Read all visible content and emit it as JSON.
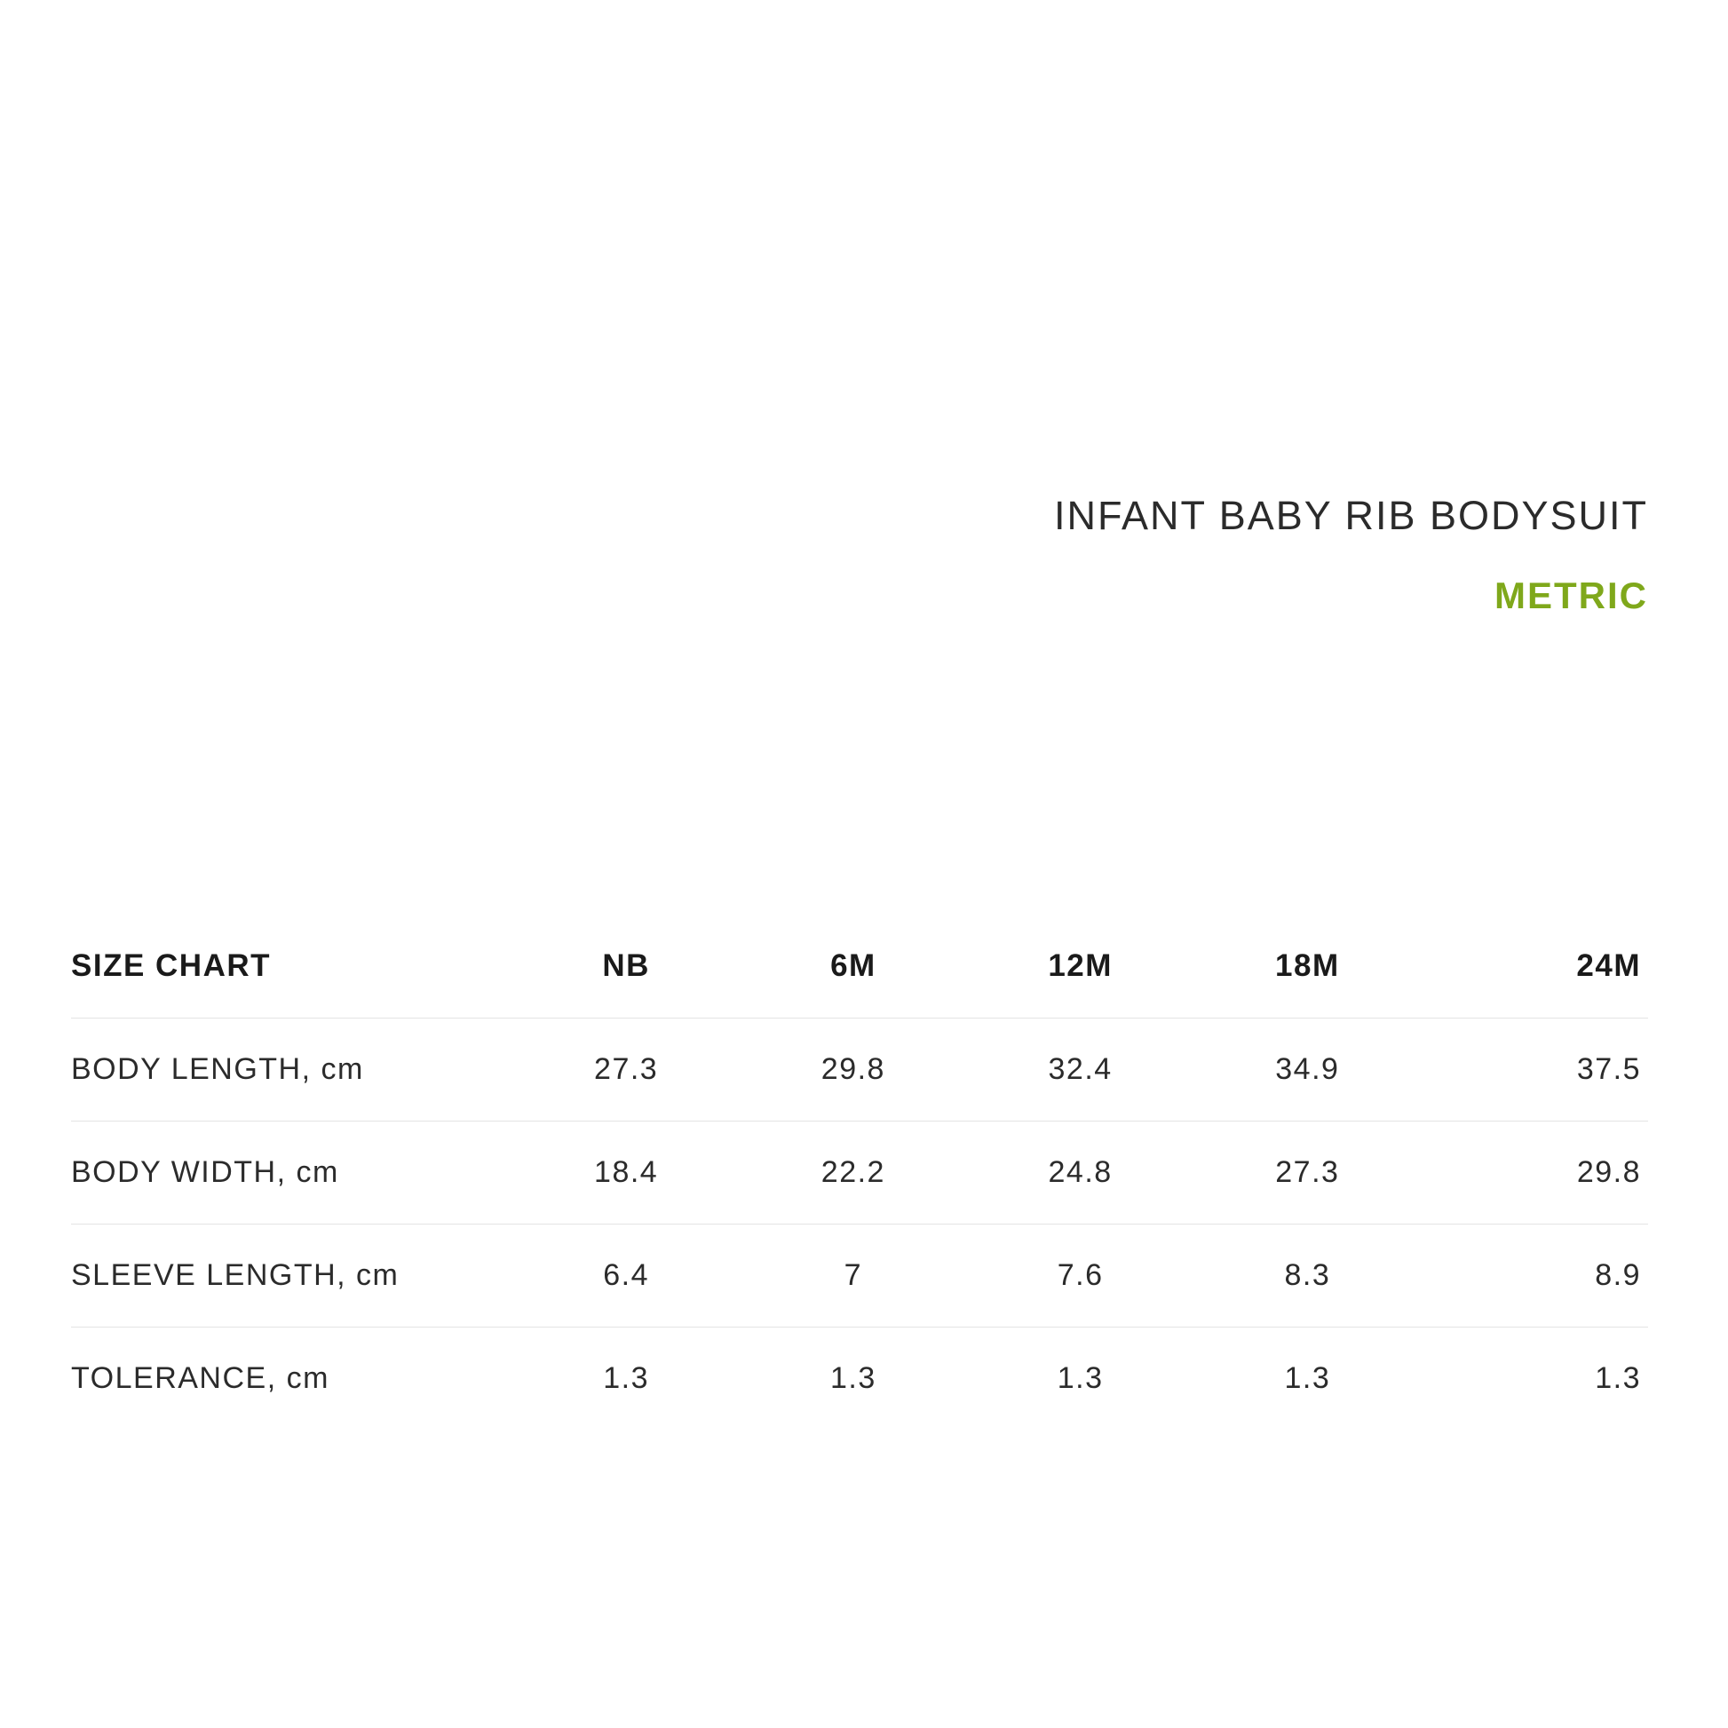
{
  "header": {
    "product_title": "INFANT BABY RIB BODYSUIT",
    "unit_label": "METRIC",
    "unit_color": "#7fa81b",
    "title_color": "#2b2b2b"
  },
  "table": {
    "type": "table",
    "background_color": "#ffffff",
    "border_color": "#e4e4e4",
    "header_fontsize": 35,
    "cell_fontsize": 34,
    "text_color": "#2b2b2b",
    "corner_label": "SIZE CHART",
    "columns": [
      "NB",
      "6M",
      "12M",
      "18M",
      "24M"
    ],
    "rows": [
      {
        "label": "BODY LENGTH, cm",
        "values": [
          "27.3",
          "29.8",
          "32.4",
          "34.9",
          "37.5"
        ]
      },
      {
        "label": "BODY WIDTH, cm",
        "values": [
          "18.4",
          "22.2",
          "24.8",
          "27.3",
          "29.8"
        ]
      },
      {
        "label": "SLEEVE LENGTH, cm",
        "values": [
          "6.4",
          "7",
          "7.6",
          "8.3",
          "8.9"
        ]
      },
      {
        "label": "TOLERANCE, cm",
        "values": [
          "1.3",
          "1.3",
          "1.3",
          "1.3",
          "1.3"
        ]
      }
    ]
  }
}
